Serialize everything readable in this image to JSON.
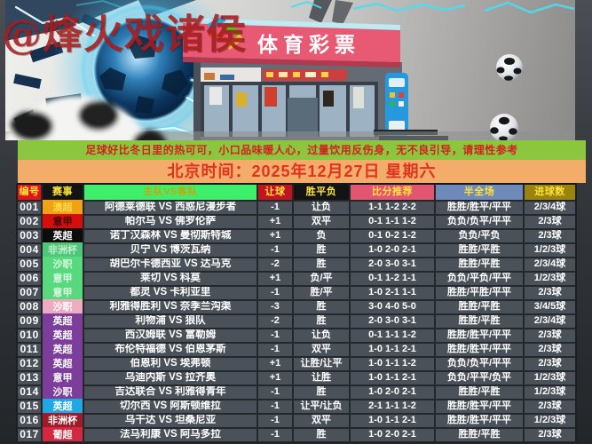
{
  "watermark": "@烽火戏诸侯",
  "hero": {
    "sign_text": "体育彩票"
  },
  "notice": "足球好比冬日里的热可可，小口品味暖人心，过量饮用反伤身，无不良引导，请理性参考",
  "date_line": "北京时间：2025年12月27日 星期六",
  "colors": {
    "notice_bg": "#8CC63E",
    "notice_text": "#D32020",
    "date_bg": "#F2AD6B",
    "date_text": "#E2321F",
    "row_bg": "#4A5159",
    "grid_line": "#24282D",
    "watermark": "#A31D1D"
  },
  "table": {
    "headers": [
      "编号",
      "赛事",
      "主队VS客队",
      "让球",
      "胜平负",
      "比分推荐",
      "半全场",
      "进球数"
    ],
    "header_colors": [
      {
        "bg": "#E31318",
        "fg": "#FFE43C"
      },
      {
        "bg": "#131313",
        "fg": "#FFE43C"
      },
      {
        "bg": "#3FEF6C",
        "fg": "#C9A50B"
      },
      {
        "bg": "#C3131F",
        "fg": "#FFE43C"
      },
      {
        "bg": "#131313",
        "fg": "#FFE43C"
      },
      {
        "bg": "#E25672",
        "fg": "#FFE43C"
      },
      {
        "bg": "#6E89BA",
        "fg": "#FFE43C"
      },
      {
        "bg": "#99850D",
        "fg": "#FFDF3C"
      }
    ],
    "rows": [
      {
        "id": "001",
        "league": "澳超",
        "league_bg": "#F0A213",
        "league_fg": "#FFD94A",
        "match": "阿德莱德联 VS 西惑尼漫步者",
        "handicap": "-1",
        "wdl": "让负",
        "scores": "1-1 1-2 2-2",
        "half_full": "胜胜/胜平/平平",
        "goals": "2/3/4球"
      },
      {
        "id": "002",
        "league": "意甲",
        "league_bg": "#D60D0D",
        "league_fg": "#3F0606",
        "match": "帕尔马 VS 佛罗伦萨",
        "handicap": "+1",
        "wdl": "双平",
        "scores": "0-1 1-1 1-2",
        "half_full": "负负/负平/平平",
        "goals": "2/3球"
      },
      {
        "id": "003",
        "league": "英超",
        "league_bg": "#0C0C0C",
        "league_fg": "#FFFFFF",
        "match": "诺丁汉森林 VS 曼彻斯特城",
        "handicap": "+1",
        "wdl": "负",
        "scores": "0-1 0-2 1-2",
        "half_full": "负负/平负",
        "goals": "2/3球"
      },
      {
        "id": "004",
        "league": "非洲杯",
        "league_bg": "#4EC878",
        "league_fg": "#C2EECE",
        "match": "贝宁 VS 博茨瓦纳",
        "handicap": "-1",
        "wdl": "胜",
        "scores": "1-0 2-0 2-1",
        "half_full": "胜胜/平胜",
        "goals": "1/2/3球"
      },
      {
        "id": "005",
        "league": "沙职",
        "league_bg": "#58D97E",
        "league_fg": "#DCF8E4",
        "match": "胡巴尔卡德西亚 VS 达马克",
        "handicap": "-2",
        "wdl": "胜",
        "scores": "2-0 3-0 3-1",
        "half_full": "胜胜/平胜",
        "goals": "2/3/4球"
      },
      {
        "id": "006",
        "league": "意甲",
        "league_bg": "#58D97E",
        "league_fg": "#DCF8E4",
        "match": "莱切 VS 科莫",
        "handicap": "+1",
        "wdl": "负/平",
        "scores": "0-1 1-2 1-1",
        "half_full": "负负/平负/平平",
        "goals": "1/2/3球"
      },
      {
        "id": "007",
        "league": "意甲",
        "league_bg": "#58D97E",
        "league_fg": "#DCF8E4",
        "match": "都灵 VS 卡利亚里",
        "handicap": "-1",
        "wdl": "胜/平",
        "scores": "1-0 2-1 1-1",
        "half_full": "胜胜/平胜/平平",
        "goals": "2/3球"
      },
      {
        "id": "008",
        "league": "沙职",
        "league_bg": "#EFABBF",
        "league_fg": "#FFFFFF",
        "match": "利雅得胜利 VS 奈季兰沟渠",
        "handicap": "-3",
        "wdl": "胜",
        "scores": "3-0 4-0 5-0",
        "half_full": "胜胜/平胜",
        "goals": "3/4/5球"
      },
      {
        "id": "009",
        "league": "英超",
        "league_bg": "#7C3D9B",
        "league_fg": "#FFFFFF",
        "match": "利物浦 VS 狼队",
        "handicap": "-2",
        "wdl": "胜",
        "scores": "2-0 3-0 3-1",
        "half_full": "胜胜/平胜",
        "goals": "2/3/4球"
      },
      {
        "id": "010",
        "league": "英超",
        "league_bg": "#7C3D9B",
        "league_fg": "#FFFFFF",
        "match": "西汉姆联 VS 富勒姆",
        "handicap": "-1",
        "wdl": "让负",
        "scores": "0-1 1-1 1-2",
        "half_full": "胜胜/胜平/平平",
        "goals": "2/3球"
      },
      {
        "id": "011",
        "league": "英超",
        "league_bg": "#7C3D9B",
        "league_fg": "#FFFFFF",
        "match": "布伦特福德 VS 伯恩茅斯",
        "handicap": "-1",
        "wdl": "双平",
        "scores": "1-0 1-1 2-1",
        "half_full": "胜胜/胜平/平平",
        "goals": "2/3球"
      },
      {
        "id": "012",
        "league": "英超",
        "league_bg": "#7C3D9B",
        "league_fg": "#FFFFFF",
        "match": "伯恩利 VS 埃弗顿",
        "handicap": "+1",
        "wdl": "让胜/让平",
        "scores": "1-0 1-1 1-2",
        "half_full": "负负/负平/平平",
        "goals": "2/3球"
      },
      {
        "id": "013",
        "league": "意甲",
        "league_bg": "#7C3D9B",
        "league_fg": "#FFFFFF",
        "match": "乌迪内斯 VS 拉齐奥",
        "handicap": "+1",
        "wdl": "让胜",
        "scores": "1-0 1-1 2-1",
        "half_full": "负负/平平/负平",
        "goals": "1/2/3球"
      },
      {
        "id": "014",
        "league": "沙职",
        "league_bg": "#7C3D9B",
        "league_fg": "#FFFFFF",
        "match": "吉达联合 VS 利雅得青年",
        "handicap": "-1",
        "wdl": "胜",
        "scores": "1-0 2-0 2-1",
        "half_full": "胜胜/平胜",
        "goals": "1/2/3球"
      },
      {
        "id": "015",
        "league": "英超",
        "league_bg": "#1FA9E4",
        "league_fg": "#FFFFFF",
        "match": "切尔西 VS 阿斯顿维拉",
        "handicap": "-1",
        "wdl": "让平/让负",
        "scores": "2-1 1-1 1-2",
        "half_full": "胜胜/胜平/平平",
        "goals": "2/3球"
      },
      {
        "id": "016",
        "league": "非洲杯",
        "league_bg": "#9C1C28",
        "league_fg": "#FFFFFF",
        "match": "乌干达 VS 坦桑尼亚",
        "handicap": "-1",
        "wdl": "双平",
        "scores": "1-0 1-1 2-1",
        "half_full": "胜胜/胜平/平平",
        "goals": "1/2/3球"
      },
      {
        "id": "017",
        "league": "葡超",
        "league_bg": "#D52840",
        "league_fg": "#FFFFFF",
        "match": "法马利康 VS 阿马多拉",
        "handicap": "-1",
        "wdl": "胜",
        "scores": "1-0 2-0 2-1",
        "half_full": "胜胜/平胜",
        "goals": "2/3球"
      }
    ]
  }
}
